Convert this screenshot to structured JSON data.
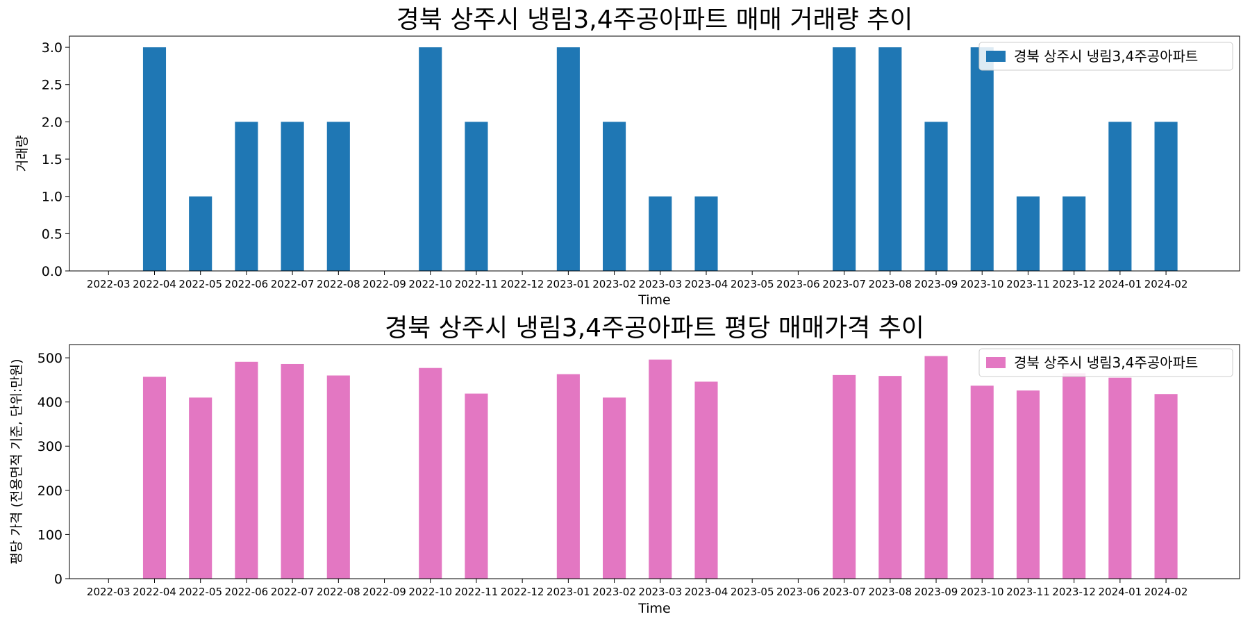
{
  "chart_data": [
    {
      "type": "bar",
      "title": "경북 상주시 냉림3,4주공아파트 매매 거래량 추이",
      "xlabel": "Time",
      "ylabel": "거래량",
      "ylim": [
        0,
        3.15
      ],
      "yticks": [
        "0.0",
        "0.5",
        "1.0",
        "1.5",
        "2.0",
        "2.5",
        "3.0"
      ],
      "ytick_values": [
        0,
        0.5,
        1.0,
        1.5,
        2.0,
        2.5,
        3.0
      ],
      "legend_position": "top-right",
      "grid": false,
      "categories": [
        "2022-03",
        "2022-04",
        "2022-05",
        "2022-06",
        "2022-07",
        "2022-08",
        "2022-09",
        "2022-10",
        "2022-11",
        "2022-12",
        "2023-01",
        "2023-02",
        "2023-03",
        "2023-04",
        "2023-05",
        "2023-06",
        "2023-07",
        "2023-08",
        "2023-09",
        "2023-10",
        "2023-11",
        "2023-12",
        "2024-01",
        "2024-02"
      ],
      "series": [
        {
          "name": "경북 상주시 냉림3,4주공아파트",
          "color": "#1f77b4",
          "values": [
            0,
            3,
            1,
            2,
            2,
            2,
            0,
            3,
            2,
            0,
            3,
            2,
            1,
            1,
            0,
            0,
            3,
            3,
            2,
            3,
            1,
            1,
            2,
            2
          ]
        }
      ]
    },
    {
      "type": "bar",
      "title": "경북 상주시 냉림3,4주공아파트 평당 매매가격 추이",
      "xlabel": "Time",
      "ylabel": "평당 가격 (전용면적 기준, 단위:만원)",
      "ylim": [
        0,
        530
      ],
      "yticks": [
        "0",
        "100",
        "200",
        "300",
        "400",
        "500"
      ],
      "ytick_values": [
        0,
        100,
        200,
        300,
        400,
        500
      ],
      "legend_position": "top-right",
      "grid": false,
      "categories": [
        "2022-03",
        "2022-04",
        "2022-05",
        "2022-06",
        "2022-07",
        "2022-08",
        "2022-09",
        "2022-10",
        "2022-11",
        "2022-12",
        "2023-01",
        "2023-02",
        "2023-03",
        "2023-04",
        "2023-05",
        "2023-06",
        "2023-07",
        "2023-08",
        "2023-09",
        "2023-10",
        "2023-11",
        "2023-12",
        "2024-01",
        "2024-02"
      ],
      "series": [
        {
          "name": "경북 상주시 냉림3,4주공아파트",
          "color": "#e377c2",
          "values": [
            0,
            457,
            410,
            491,
            486,
            460,
            0,
            477,
            419,
            0,
            463,
            410,
            496,
            446,
            0,
            0,
            461,
            459,
            504,
            437,
            426,
            465,
            455,
            418
          ]
        }
      ]
    }
  ]
}
